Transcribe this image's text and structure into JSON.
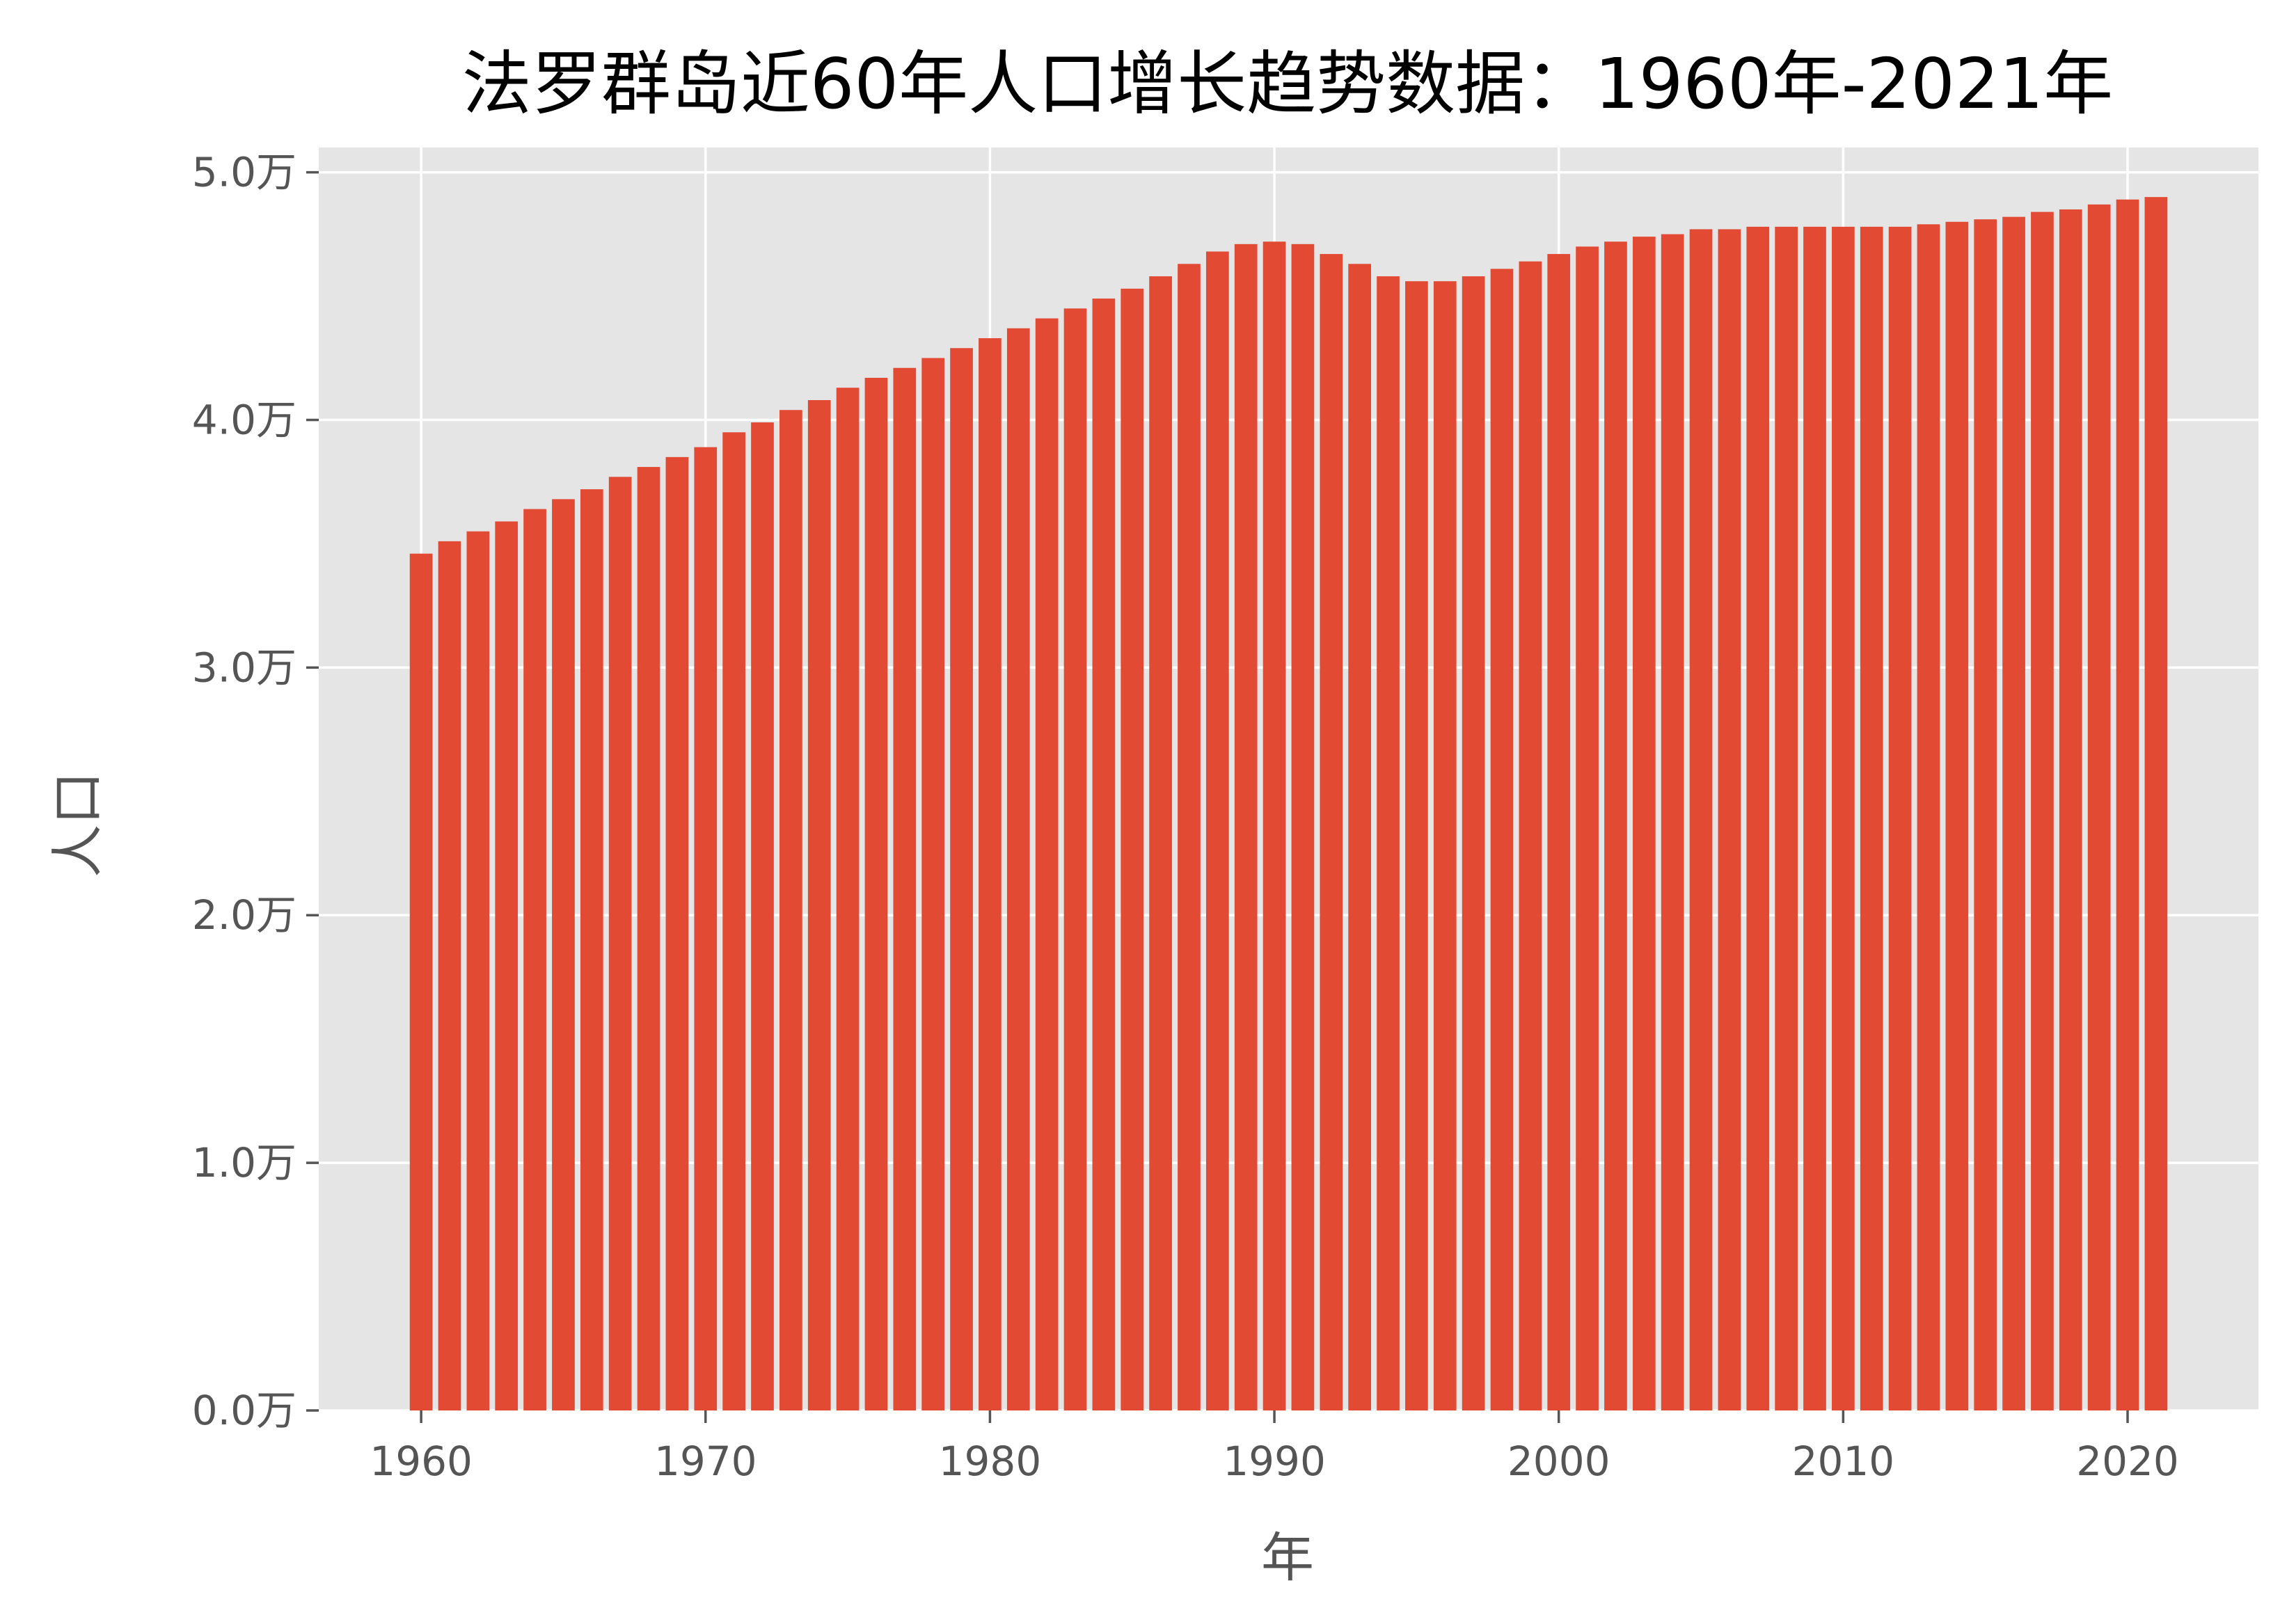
{
  "chart_data": {
    "type": "bar",
    "title": "法罗群岛近60年人口增长趋势数据：1960年-2021年",
    "xlabel": "年",
    "ylabel": "人口",
    "x": [
      1960,
      1961,
      1962,
      1963,
      1964,
      1965,
      1966,
      1967,
      1968,
      1969,
      1970,
      1971,
      1972,
      1973,
      1974,
      1975,
      1976,
      1977,
      1978,
      1979,
      1980,
      1981,
      1982,
      1983,
      1984,
      1985,
      1986,
      1987,
      1988,
      1989,
      1990,
      1991,
      1992,
      1993,
      1994,
      1995,
      1996,
      1997,
      1998,
      1999,
      2000,
      2001,
      2002,
      2003,
      2004,
      2005,
      2006,
      2007,
      2008,
      2009,
      2010,
      2011,
      2012,
      2013,
      2014,
      2015,
      2016,
      2017,
      2018,
      2019,
      2020,
      2021
    ],
    "values": [
      34600,
      35100,
      35500,
      35900,
      36400,
      36800,
      37200,
      37700,
      38100,
      38500,
      38900,
      39500,
      39900,
      40400,
      40800,
      41300,
      41700,
      42100,
      42500,
      42900,
      43300,
      43700,
      44100,
      44500,
      44900,
      45300,
      45800,
      46300,
      46800,
      47100,
      47200,
      47100,
      46700,
      46300,
      45800,
      45600,
      45600,
      45800,
      46100,
      46400,
      46700,
      47000,
      47200,
      47400,
      47500,
      47700,
      47700,
      47800,
      47800,
      47800,
      47800,
      47800,
      47800,
      47900,
      48000,
      48100,
      48200,
      48400,
      48500,
      48700,
      48900,
      49000
    ],
    "xlim": [
      1956.4,
      2024.6
    ],
    "ylim": [
      0,
      51000
    ],
    "xticks": [
      1960,
      1970,
      1980,
      1990,
      2000,
      2010,
      2020
    ],
    "yticks": [
      0,
      10000,
      20000,
      30000,
      40000,
      50000
    ],
    "ytick_labels": [
      "0.0万",
      "1.0万",
      "2.0万",
      "3.0万",
      "4.0万",
      "5.0万"
    ],
    "xtick_labels": [
      "1960",
      "1970",
      "1980",
      "1990",
      "2000",
      "2010",
      "2020"
    ],
    "grid": true,
    "style": "ggplot",
    "colors": {
      "bar": "#E24A33",
      "plot_background": "#E5E5E5",
      "grid": "#FFFFFF",
      "tick_text": "#555555",
      "title_text": "#000000"
    }
  }
}
